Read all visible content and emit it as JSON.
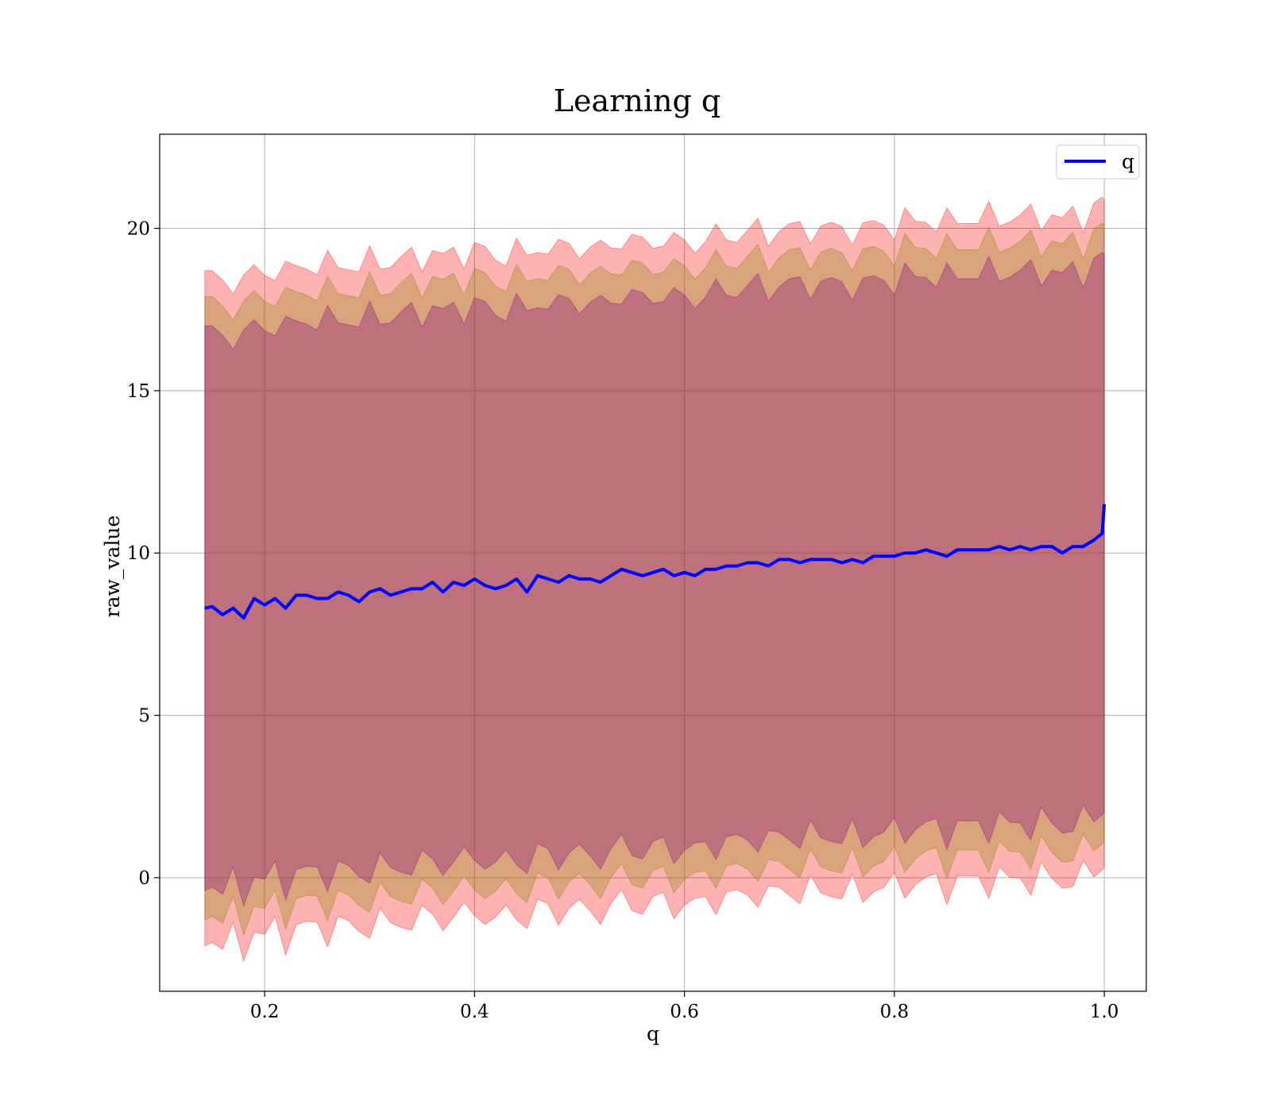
{
  "chart_data": {
    "type": "line",
    "title": "Learning q",
    "xlabel": "q",
    "ylabel": "raw_value",
    "xlim": [
      0.1,
      1.04
    ],
    "ylim": [
      -3.5,
      22.9
    ],
    "xticks": [
      0.2,
      0.4,
      0.6,
      0.8,
      1.0
    ],
    "xtick_labels": [
      "0.2",
      "0.4",
      "0.6",
      "0.8",
      "1.0"
    ],
    "yticks": [
      0,
      5,
      10,
      15,
      20
    ],
    "ytick_labels": [
      "0",
      "5",
      "10",
      "15",
      "20"
    ],
    "grid": true,
    "legend": {
      "position": "top-right",
      "entries": [
        "q"
      ]
    },
    "colors": {
      "line": "#0000ff",
      "band": "#ff0000",
      "inner_band": "#800080",
      "middle_band": "#808000"
    },
    "series": [
      {
        "name": "q",
        "x": [
          0.143,
          0.15,
          0.16,
          0.17,
          0.18,
          0.19,
          0.2,
          0.21,
          0.22,
          0.23,
          0.24,
          0.25,
          0.26,
          0.27,
          0.28,
          0.29,
          0.3,
          0.31,
          0.32,
          0.33,
          0.34,
          0.35,
          0.36,
          0.37,
          0.38,
          0.39,
          0.4,
          0.41,
          0.42,
          0.43,
          0.44,
          0.45,
          0.46,
          0.47,
          0.48,
          0.49,
          0.5,
          0.51,
          0.52,
          0.53,
          0.54,
          0.55,
          0.56,
          0.57,
          0.58,
          0.59,
          0.6,
          0.61,
          0.62,
          0.63,
          0.64,
          0.65,
          0.66,
          0.67,
          0.68,
          0.69,
          0.7,
          0.71,
          0.72,
          0.73,
          0.74,
          0.75,
          0.76,
          0.77,
          0.78,
          0.79,
          0.8,
          0.81,
          0.82,
          0.83,
          0.84,
          0.85,
          0.86,
          0.87,
          0.88,
          0.89,
          0.9,
          0.91,
          0.92,
          0.93,
          0.94,
          0.95,
          0.96,
          0.97,
          0.98,
          0.99,
          0.998,
          1.0
        ],
        "y": [
          8.3,
          8.35,
          8.1,
          8.3,
          8.0,
          8.6,
          8.4,
          8.6,
          8.3,
          8.7,
          8.7,
          8.6,
          8.6,
          8.8,
          8.7,
          8.5,
          8.8,
          8.9,
          8.7,
          8.8,
          8.9,
          8.9,
          9.1,
          8.8,
          9.1,
          9.0,
          9.2,
          9.0,
          8.9,
          9.0,
          9.2,
          8.8,
          9.3,
          9.2,
          9.1,
          9.3,
          9.2,
          9.2,
          9.1,
          9.3,
          9.5,
          9.4,
          9.3,
          9.4,
          9.5,
          9.3,
          9.4,
          9.3,
          9.5,
          9.5,
          9.6,
          9.6,
          9.7,
          9.7,
          9.6,
          9.8,
          9.8,
          9.7,
          9.8,
          9.8,
          9.8,
          9.7,
          9.8,
          9.7,
          9.9,
          9.9,
          9.9,
          10.0,
          10.0,
          10.1,
          10.0,
          9.9,
          10.1,
          10.1,
          10.1,
          10.1,
          10.2,
          10.1,
          10.2,
          10.1,
          10.2,
          10.2,
          10.0,
          10.2,
          10.2,
          10.4,
          10.6,
          11.5
        ]
      }
    ],
    "bands": [
      {
        "half_width": 10.2,
        "color": "#ff0000",
        "opacity": 0.3
      },
      {
        "half_width": 9.4,
        "color": "#808000",
        "opacity": 0.3
      },
      {
        "half_width": 8.5,
        "color": "#800080",
        "opacity": 0.3
      }
    ]
  }
}
